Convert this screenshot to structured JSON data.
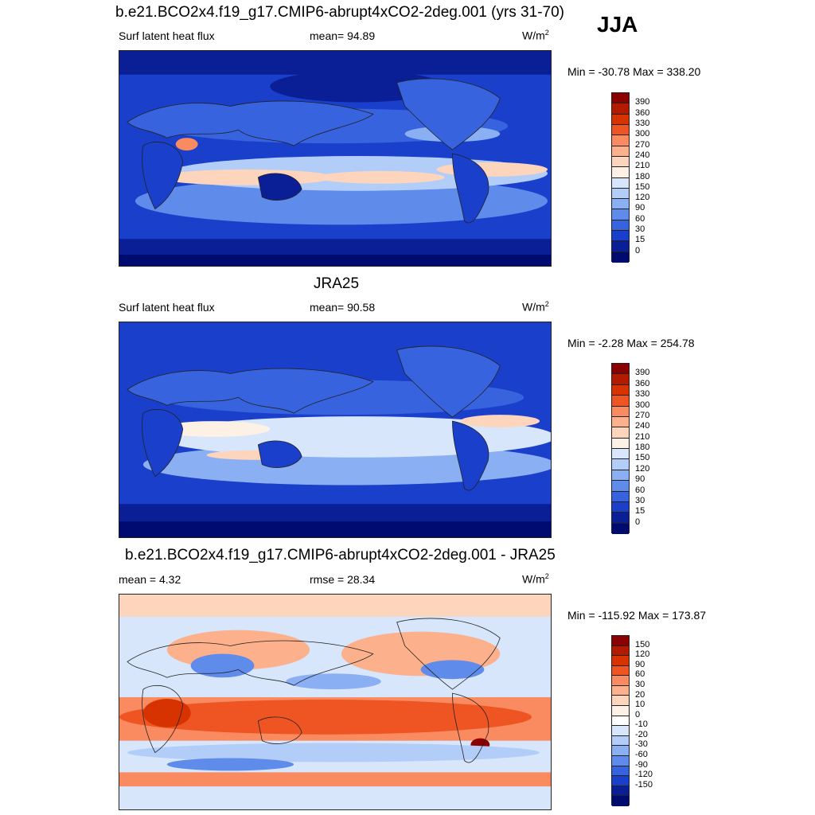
{
  "season": "JJA",
  "units_base": "W/m",
  "units_exp": "2",
  "panels": [
    {
      "title": "b.e21.BCO2x4.f19_g17.CMIP6-abrupt4xCO2-2deg.001 (yrs 31-70)",
      "left_label": "Surf latent heat flux",
      "center_label": "mean=  94.89",
      "minmax": "Min = -30.78 Max = 338.20",
      "levels": [
        "390",
        "360",
        "330",
        "300",
        "270",
        "240",
        "210",
        "180",
        "150",
        "120",
        "90",
        "60",
        "30",
        "15",
        "0"
      ],
      "colors": [
        "#8b0000",
        "#b31b00",
        "#d63300",
        "#ee5522",
        "#fa8a60",
        "#fcb08c",
        "#fdd5bc",
        "#fdf0e4",
        "#d8e6fb",
        "#b3cdf9",
        "#8ab0f3",
        "#5f8bea",
        "#3763de",
        "#1a3fca",
        "#0a1f96",
        "#000b70"
      ]
    },
    {
      "title": "JRA25",
      "left_label": "Surf latent heat flux",
      "center_label": "mean=  90.58",
      "minmax": "Min =  -2.28 Max = 254.78",
      "levels": [
        "390",
        "360",
        "330",
        "300",
        "270",
        "240",
        "210",
        "180",
        "150",
        "120",
        "90",
        "60",
        "30",
        "15",
        "0"
      ],
      "colors": [
        "#8b0000",
        "#b31b00",
        "#d63300",
        "#ee5522",
        "#fa8a60",
        "#fcb08c",
        "#fdd5bc",
        "#fdf0e4",
        "#d8e6fb",
        "#b3cdf9",
        "#8ab0f3",
        "#5f8bea",
        "#3763de",
        "#1a3fca",
        "#0a1f96",
        "#000b70"
      ]
    },
    {
      "title": "b.e21.BCO2x4.f19_g17.CMIP6-abrupt4xCO2-2deg.001 - JRA25",
      "left_label": "mean =   4.32",
      "center_label": "rmse =  28.34",
      "minmax": "Min = -115.92 Max = 173.87",
      "levels": [
        "150",
        "120",
        "90",
        "60",
        "30",
        "20",
        "10",
        "0",
        "-10",
        "-20",
        "-30",
        "-60",
        "-90",
        "-120",
        "-150"
      ],
      "colors": [
        "#8b0000",
        "#b31b00",
        "#d63300",
        "#ee5522",
        "#fa8a60",
        "#fcb08c",
        "#fdd5bc",
        "#fdf0e4",
        "#ffffff",
        "#d8e6fb",
        "#b3cdf9",
        "#8ab0f3",
        "#5f8bea",
        "#3763de",
        "#1a3fca",
        "#0a1f96",
        "#000b70"
      ]
    }
  ]
}
